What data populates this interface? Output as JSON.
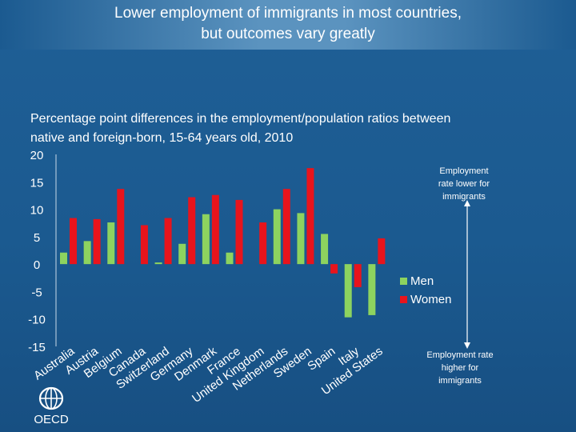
{
  "header": {
    "title_line1": "Lower employment of immigrants in most countries,",
    "title_line2": "but outcomes vary greatly"
  },
  "subtitle_line1": "Percentage point differences in the employment/population ratios between",
  "subtitle_line2": "native and foreign-born, 15-64 years old, 2010",
  "annotations": {
    "top": [
      "Employment",
      "rate lower for",
      "immigrants"
    ],
    "bottom": [
      "Employment rate",
      "higher for",
      "immigrants"
    ]
  },
  "logo_text": "OECD",
  "colors": {
    "men": "#8dd35f",
    "women": "#e8141c",
    "arrow": "#ffffff"
  },
  "chart_data": {
    "type": "bar",
    "title": "Percentage point differences in the employment/population ratios between native and foreign-born, 15-64 years old, 2010",
    "categories": [
      "Australia",
      "Austria",
      "Belgium",
      "Canada",
      "Switzerland",
      "Germany",
      "Denmark",
      "France",
      "United Kingdom",
      "Netherlands",
      "Sweden",
      "Spain",
      "Italy",
      "United States"
    ],
    "series": [
      {
        "name": "Men",
        "values": [
          2.1,
          4.2,
          7.6,
          0,
          0.3,
          3.7,
          9.1,
          2.1,
          0,
          10.0,
          9.3,
          5.5,
          0,
          0
        ]
      },
      {
        "name": "Women",
        "values": [
          8.4,
          8.2,
          13.7,
          7.1,
          8.4,
          12.2,
          12.6,
          11.7,
          7.6,
          13.7,
          17.5,
          -1.7,
          -4.2,
          4.7
        ]
      }
    ],
    "extra_negative_men": [
      0,
      0,
      0,
      0,
      0,
      0,
      0,
      0,
      0,
      0,
      0,
      0,
      -9.7,
      -9.3
    ],
    "yticks": [
      "20",
      "15",
      "10",
      "5",
      "0",
      "-5",
      "-10",
      "-15"
    ],
    "ylim": [
      -15,
      20
    ],
    "grid": false,
    "legend": "right"
  }
}
